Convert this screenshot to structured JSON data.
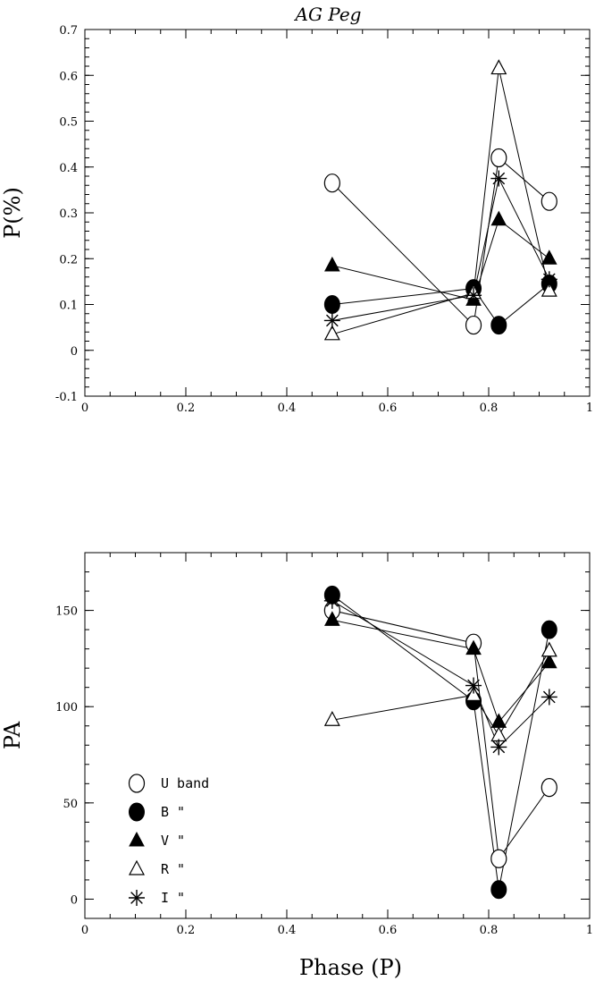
{
  "chart_data": [
    {
      "type": "line",
      "title": "AG Peg",
      "xlabel": "",
      "ylabel": "P(%)",
      "xlim": [
        0,
        1
      ],
      "ylim": [
        -0.1,
        0.7
      ],
      "xticks": [
        0,
        0.2,
        0.4,
        0.6,
        0.8,
        1
      ],
      "xtick_labels": [
        "0",
        "0.2",
        "0.4",
        "0.6",
        "0.8",
        "1"
      ],
      "yticks": [
        -0.1,
        0,
        0.1,
        0.2,
        0.3,
        0.4,
        0.5,
        0.6,
        0.7
      ],
      "ytick_labels": [
        "-0.1",
        "0",
        "0.1",
        "0.2",
        "0.3",
        "0.4",
        "0.5",
        "0.6",
        "0.7"
      ],
      "x": [
        0.49,
        0.77,
        0.82,
        0.92
      ],
      "series": [
        {
          "marker": "circle-open",
          "values": [
            0.365,
            0.055,
            0.42,
            0.325
          ]
        },
        {
          "marker": "circle-filled",
          "values": [
            0.1,
            0.135,
            0.055,
            0.145
          ]
        },
        {
          "marker": "triangle-filled",
          "values": [
            0.185,
            0.11,
            0.285,
            0.2
          ]
        },
        {
          "marker": "triangle-open",
          "values": [
            0.035,
            0.125,
            0.615,
            0.13
          ]
        },
        {
          "marker": "asterisk",
          "values": [
            0.065,
            0.12,
            0.375,
            0.155
          ]
        }
      ]
    },
    {
      "type": "line",
      "title": "",
      "xlabel": "Phase (P)",
      "ylabel": "PA",
      "xlim": [
        0,
        1
      ],
      "ylim": [
        -10,
        180
      ],
      "xticks": [
        0,
        0.2,
        0.4,
        0.6,
        0.8,
        1
      ],
      "xtick_labels": [
        "0",
        "0.2",
        "0.4",
        "0.6",
        "0.8",
        "1"
      ],
      "yticks": [
        0,
        50,
        100,
        150
      ],
      "ytick_labels": [
        "0",
        "50",
        "100",
        "150"
      ],
      "legend_position": "bottom-left",
      "x": [
        0.49,
        0.77,
        0.82,
        0.92
      ],
      "series": [
        {
          "name": "U band",
          "marker": "circle-open",
          "values": [
            150,
            133,
            21,
            58
          ]
        },
        {
          "name": "B \"",
          "marker": "circle-filled",
          "values": [
            158,
            103,
            5,
            140
          ]
        },
        {
          "name": "V \"",
          "marker": "triangle-filled",
          "values": [
            145,
            130,
            92,
            123
          ]
        },
        {
          "name": "R \"",
          "marker": "triangle-open",
          "values": [
            93,
            106,
            85,
            129
          ]
        },
        {
          "name": "I \"",
          "marker": "asterisk",
          "values": [
            155,
            111,
            79,
            105
          ]
        }
      ]
    }
  ]
}
